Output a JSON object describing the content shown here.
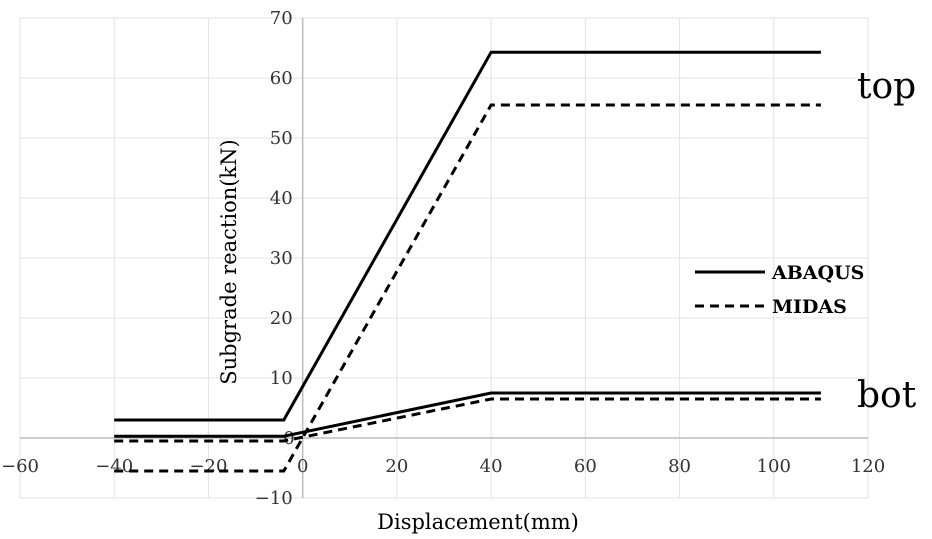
{
  "chart_data": {
    "type": "line",
    "title": "",
    "xlabel": "Displacement(mm)",
    "ylabel": "Subgrade reaction(kN)",
    "xlim": [
      -60,
      120
    ],
    "ylim": [
      -10,
      70
    ],
    "xticks": [
      -60,
      -40,
      -20,
      0,
      20,
      40,
      60,
      80,
      100,
      120
    ],
    "yticks": [
      -10,
      10,
      20,
      30,
      40,
      50,
      60,
      70
    ],
    "x_tick_labels": [
      "−60",
      "−40",
      "−20",
      "0",
      "20",
      "40",
      "60",
      "80",
      "100",
      "120"
    ],
    "y_tick_labels": [
      "−10",
      "10",
      "20",
      "30",
      "40",
      "50",
      "60",
      "70"
    ],
    "y_zero_label": "0",
    "grid": true,
    "legend_position": "right",
    "legend": [
      {
        "label": "ABAQUS",
        "style": "solid"
      },
      {
        "label": "MIDAS",
        "style": "dashed"
      }
    ],
    "annotations": [
      {
        "text": "top",
        "x": 115,
        "y": 58.5
      },
      {
        "text": "bot",
        "x": 115,
        "y": 7
      }
    ],
    "series": [
      {
        "name": "ABAQUS",
        "group": "top",
        "style": "solid",
        "x": [
          -40,
          -4,
          40,
          110
        ],
        "y": [
          3,
          3,
          64.3,
          64.3
        ]
      },
      {
        "name": "MIDAS",
        "group": "top",
        "style": "dashed",
        "x": [
          -40,
          -4,
          40,
          110
        ],
        "y": [
          -5.5,
          -5.5,
          55.5,
          55.5
        ]
      },
      {
        "name": "ABAQUS",
        "group": "bot",
        "style": "solid",
        "x": [
          -40,
          -4,
          40,
          110
        ],
        "y": [
          0.3,
          0.3,
          7.5,
          7.5
        ]
      },
      {
        "name": "MIDAS",
        "group": "bot",
        "style": "dashed",
        "x": [
          -40,
          -4,
          40,
          110
        ],
        "y": [
          -0.5,
          -0.5,
          6.5,
          6.5
        ]
      }
    ]
  }
}
